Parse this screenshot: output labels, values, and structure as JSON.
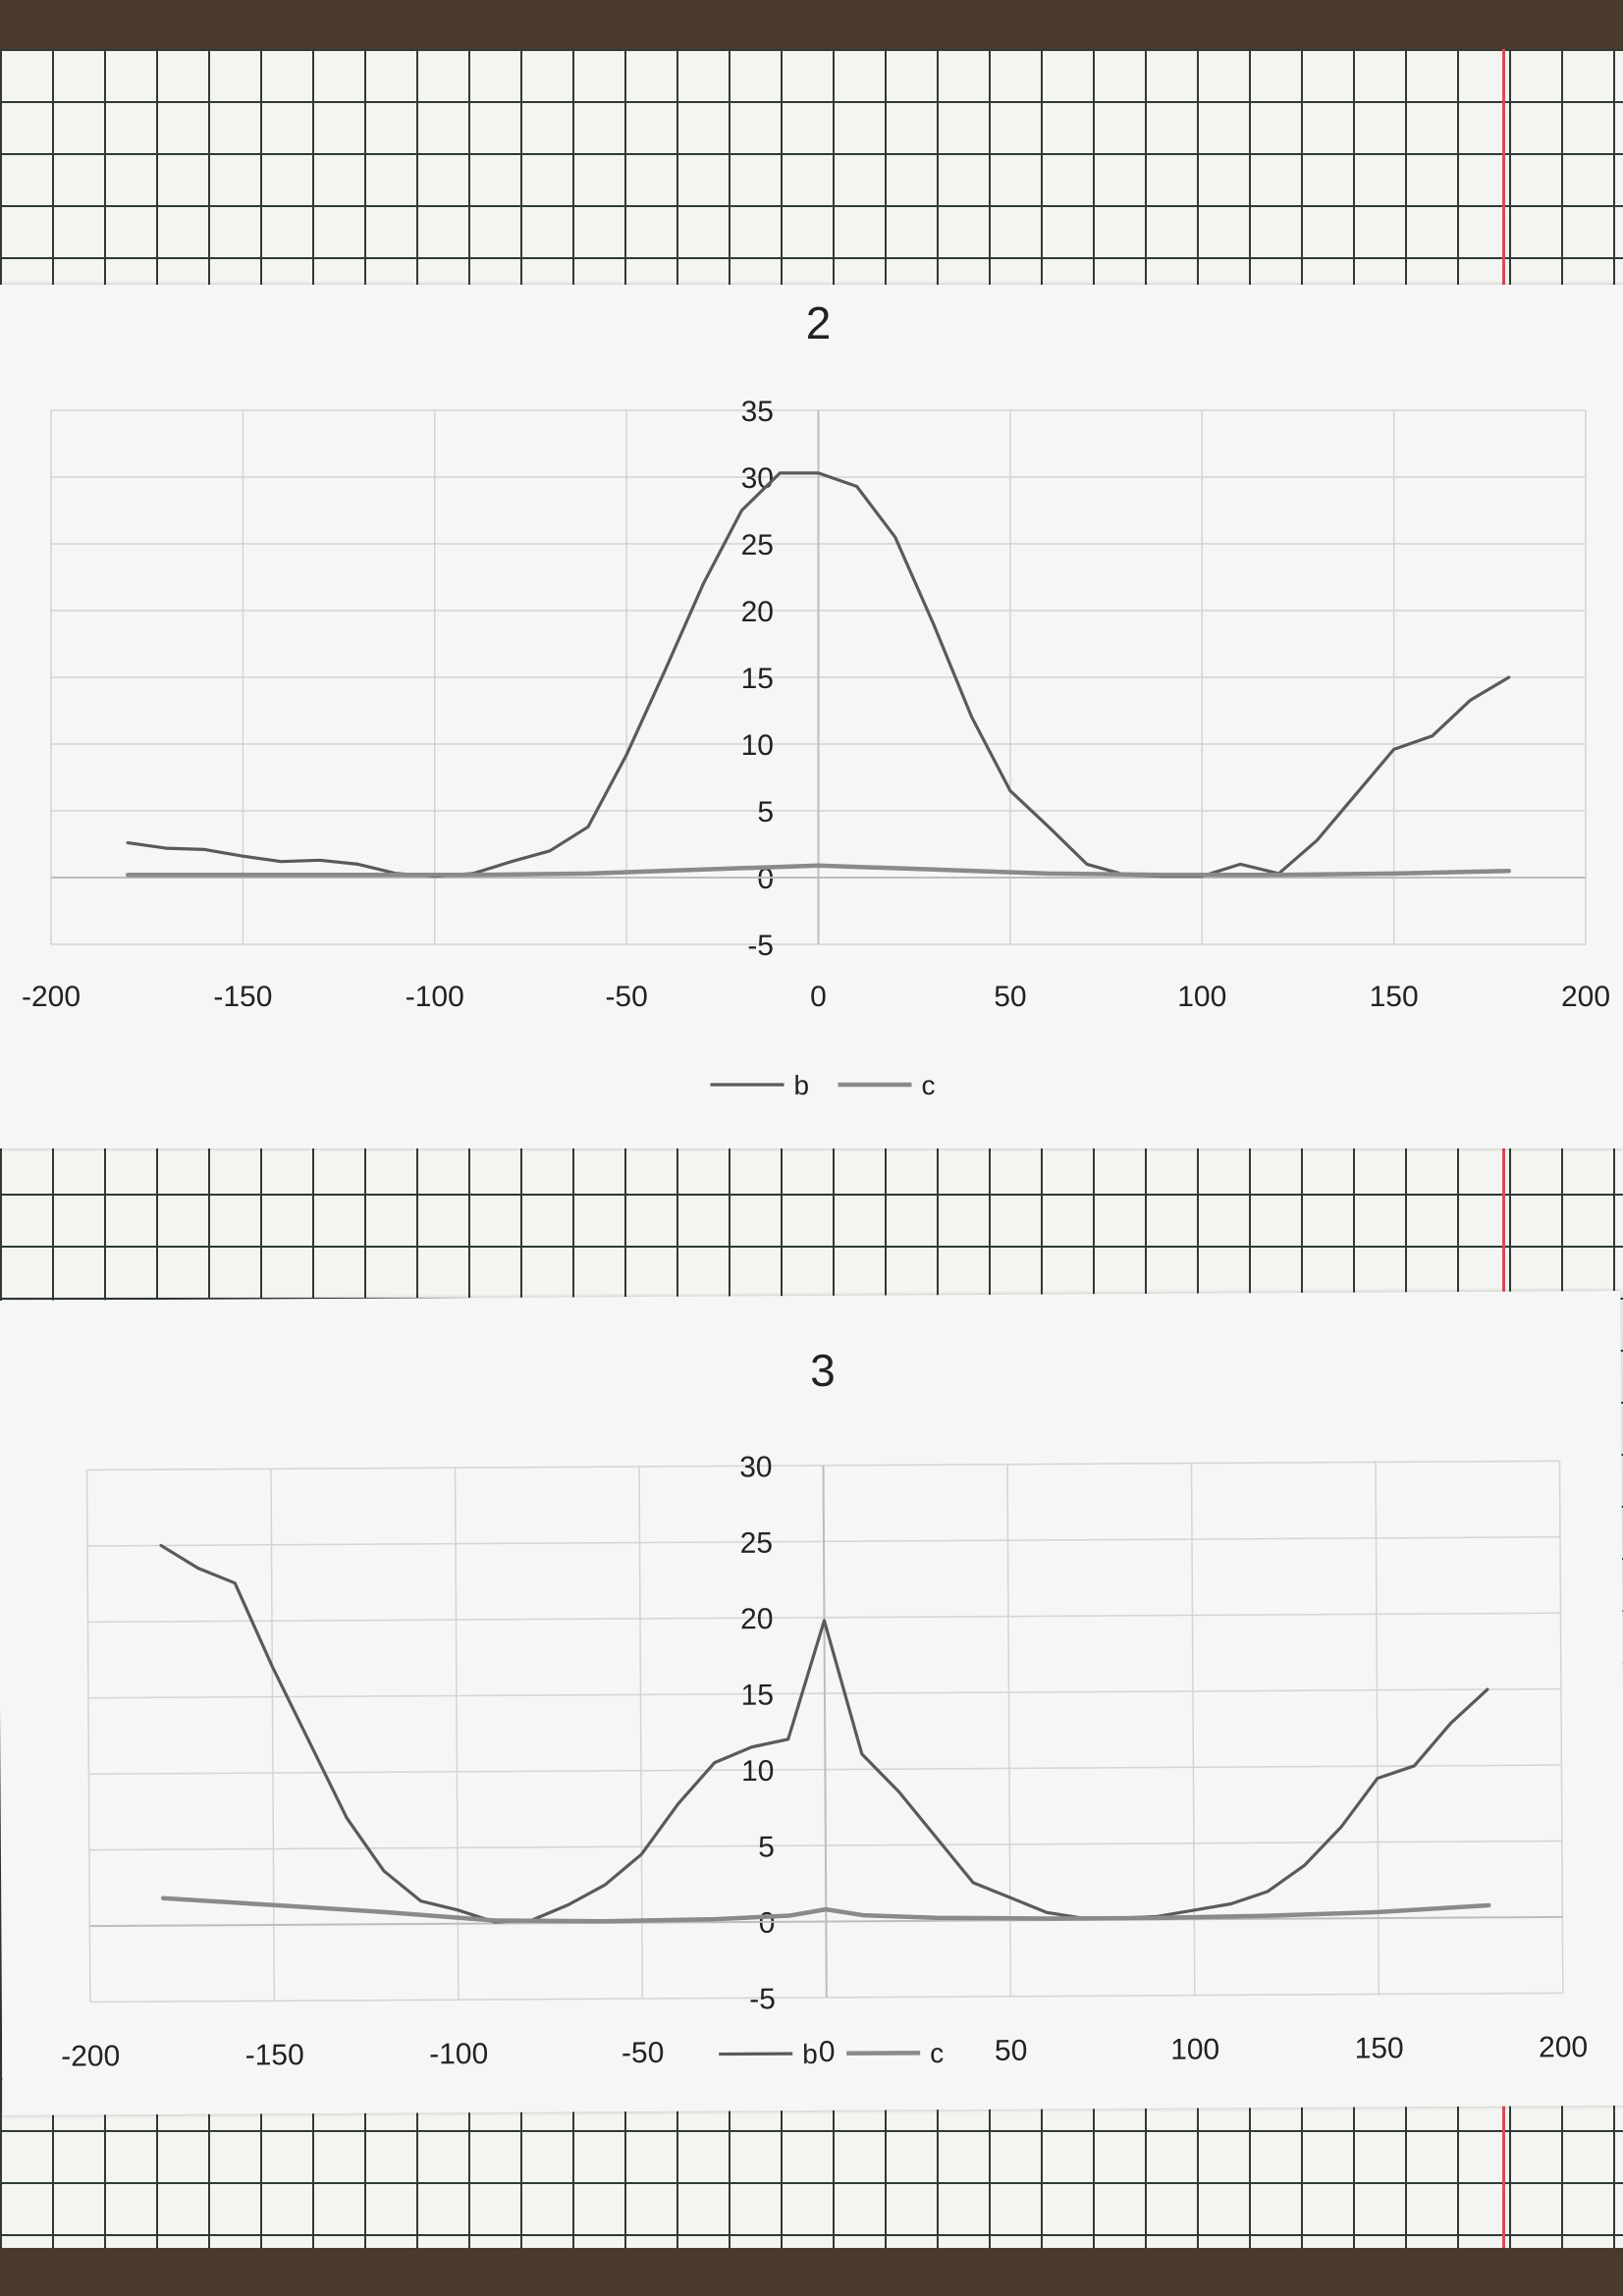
{
  "chart_data": [
    {
      "type": "line",
      "title": "2",
      "xlim": [
        -200,
        200
      ],
      "ylim": [
        -5,
        35
      ],
      "x_ticks": [
        "-200",
        "-150",
        "-100",
        "-50",
        "0",
        "50",
        "100",
        "150",
        "200"
      ],
      "y_ticks": [
        "-5",
        "0",
        "5",
        "10",
        "15",
        "20",
        "25",
        "30",
        "35"
      ],
      "legend": "bottom",
      "grid": true,
      "series": [
        {
          "name": "b",
          "x": [
            -180,
            -170,
            -160,
            -150,
            -140,
            -130,
            -120,
            -110,
            -100,
            -90,
            -80,
            -70,
            -60,
            -50,
            -40,
            -30,
            -20,
            -10,
            0,
            10,
            20,
            30,
            40,
            50,
            60,
            70,
            80,
            90,
            100,
            110,
            120,
            130,
            140,
            150,
            160,
            170,
            180
          ],
          "values": [
            2.6,
            2.2,
            2.1,
            1.6,
            1.2,
            1.3,
            1.0,
            0.3,
            0.1,
            0.3,
            1.2,
            2.0,
            3.8,
            9.2,
            15.5,
            22.0,
            27.5,
            30.3,
            30.3,
            29.3,
            25.5,
            19.0,
            12.0,
            6.5,
            3.8,
            1.0,
            0.2,
            0.1,
            0.1,
            1.0,
            0.3,
            2.8,
            6.2,
            9.6,
            10.6,
            13.3,
            15.0
          ]
        },
        {
          "name": "c",
          "x": [
            -180,
            -150,
            -120,
            -90,
            -60,
            -30,
            -10,
            0,
            10,
            30,
            60,
            90,
            120,
            150,
            180
          ],
          "values": [
            0.2,
            0.2,
            0.2,
            0.2,
            0.3,
            0.6,
            0.8,
            0.9,
            0.8,
            0.6,
            0.3,
            0.2,
            0.2,
            0.3,
            0.5
          ]
        }
      ]
    },
    {
      "type": "line",
      "title": "3",
      "xlim": [
        -200,
        200
      ],
      "ylim": [
        -5,
        30
      ],
      "x_ticks": [
        "-200",
        "-150",
        "-100",
        "-50",
        "0",
        "50",
        "100",
        "150",
        "200"
      ],
      "y_ticks": [
        "-5",
        "0",
        "5",
        "10",
        "15",
        "20",
        "25",
        "30"
      ],
      "legend": "bottom",
      "grid": true,
      "series": [
        {
          "name": "b",
          "x": [
            -180,
            -170,
            -160,
            -150,
            -140,
            -130,
            -120,
            -110,
            -100,
            -90,
            -80,
            -70,
            -60,
            -50,
            -40,
            -30,
            -20,
            -10,
            0,
            10,
            20,
            30,
            40,
            50,
            60,
            70,
            80,
            90,
            100,
            110,
            120,
            130,
            140,
            150,
            160,
            170,
            180
          ],
          "values": [
            25.0,
            23.5,
            22.5,
            17.0,
            12.0,
            7.0,
            3.5,
            1.5,
            0.9,
            0.1,
            0.2,
            1.2,
            2.5,
            4.5,
            7.8,
            10.5,
            11.5,
            12.0,
            19.8,
            11.0,
            8.5,
            5.5,
            2.5,
            1.5,
            0.5,
            0.1,
            0.1,
            0.2,
            0.6,
            1.0,
            1.8,
            3.5,
            6.0,
            9.2,
            10.0,
            12.8,
            15.0
          ]
        },
        {
          "name": "c",
          "x": [
            -180,
            -150,
            -120,
            -90,
            -60,
            -30,
            -10,
            0,
            10,
            30,
            60,
            90,
            120,
            150,
            180
          ],
          "values": [
            1.8,
            1.3,
            0.8,
            0.2,
            0.1,
            0.2,
            0.4,
            0.8,
            0.4,
            0.2,
            0.1,
            0.1,
            0.2,
            0.4,
            0.8
          ]
        }
      ]
    }
  ]
}
